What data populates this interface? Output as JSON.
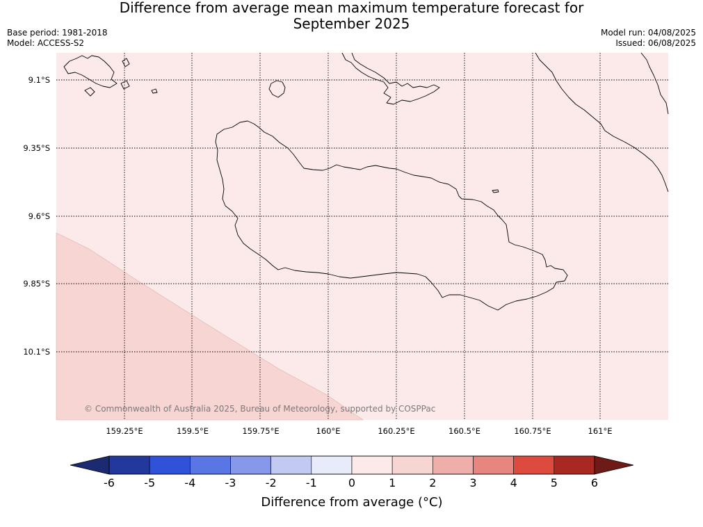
{
  "header": {
    "title_line1": "Difference from average mean maximum temperature forecast for",
    "title_line2": "September 2025",
    "base_period": "Base period: 1981-2018",
    "model": "Model: ACCESS-S2",
    "model_run": "Model run: 04/08/2025",
    "issued": "Issued: 06/08/2025"
  },
  "map": {
    "credit": "© Commonwealth of Australia 2025, Bureau of Meteorology, supported by COSPPac",
    "lat_labels": [
      "9.1°S",
      "9.35°S",
      "9.6°S",
      "9.85°S",
      "10.1°S"
    ],
    "lon_labels": [
      "159.25°E",
      "159.5°E",
      "159.75°E",
      "160°E",
      "160.25°E",
      "160.5°E",
      "160.75°E",
      "161°E"
    ],
    "fill_colors": {
      "zero_to_one": "#fbeae9",
      "one_to_two": "#f6d5d2"
    },
    "coastline_color": "#000000",
    "grid_style": "dotted"
  },
  "colorbar": {
    "title": "Difference from average (°C)",
    "ticks": [
      "-6",
      "-5",
      "-4",
      "-3",
      "-2",
      "-1",
      "0",
      "1",
      "2",
      "3",
      "4",
      "5",
      "6"
    ],
    "colors": [
      "#23389d",
      "#2f52d9",
      "#5a75e4",
      "#8797e9",
      "#c2caf4",
      "#e8ebfa",
      "#fbeae9",
      "#f6d5d2",
      "#eeaeaa",
      "#e6867f",
      "#dd4a3e",
      "#a92922"
    ],
    "under_color": "#1c2a72",
    "over_color": "#6e1a16"
  }
}
